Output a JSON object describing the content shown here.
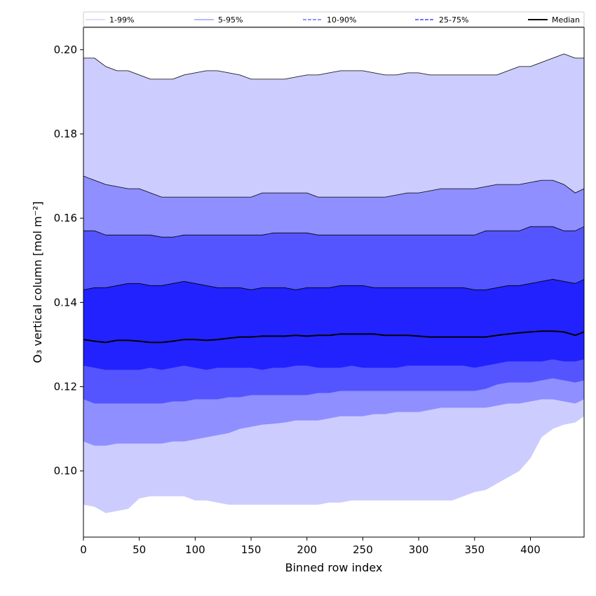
{
  "chart_data": {
    "type": "area",
    "title": "",
    "xlabel": "Binned row index",
    "ylabel": "O₃ vertical column [mol m⁻²]",
    "xlim": [
      0,
      448
    ],
    "ylim": [
      0.0843,
      0.2053
    ],
    "x_ticks": [
      0,
      50,
      100,
      150,
      200,
      250,
      300,
      350,
      400
    ],
    "y_ticks": [
      0.1,
      0.12,
      0.14,
      0.16,
      0.18,
      0.2
    ],
    "y_tick_labels": [
      "0.10",
      "0.12",
      "0.14",
      "0.16",
      "0.18",
      "0.20"
    ],
    "grid": false,
    "legend_position": "top",
    "x": [
      0,
      10,
      20,
      30,
      40,
      50,
      60,
      70,
      80,
      90,
      100,
      110,
      120,
      130,
      140,
      150,
      160,
      170,
      180,
      190,
      200,
      210,
      220,
      230,
      240,
      250,
      260,
      270,
      280,
      290,
      300,
      310,
      320,
      330,
      340,
      350,
      360,
      370,
      380,
      390,
      400,
      410,
      420,
      430,
      440,
      448
    ],
    "bands": [
      {
        "name": "1-99%",
        "color": "#ccccff",
        "upper": [
          0.198,
          0.198,
          0.196,
          0.195,
          0.195,
          0.194,
          0.193,
          0.193,
          0.193,
          0.194,
          0.1945,
          0.195,
          0.195,
          0.1945,
          0.194,
          0.193,
          0.193,
          0.193,
          0.193,
          0.1935,
          0.194,
          0.194,
          0.1945,
          0.195,
          0.195,
          0.195,
          0.1945,
          0.194,
          0.194,
          0.1945,
          0.1945,
          0.194,
          0.194,
          0.194,
          0.194,
          0.194,
          0.194,
          0.194,
          0.195,
          0.196,
          0.196,
          0.197,
          0.198,
          0.199,
          0.198,
          0.198
        ],
        "lower": [
          0.092,
          0.0915,
          0.09,
          0.0905,
          0.091,
          0.0935,
          0.094,
          0.094,
          0.094,
          0.094,
          0.093,
          0.093,
          0.0925,
          0.092,
          0.092,
          0.092,
          0.092,
          0.092,
          0.092,
          0.092,
          0.092,
          0.092,
          0.0925,
          0.0925,
          0.093,
          0.093,
          0.093,
          0.093,
          0.093,
          0.093,
          0.093,
          0.093,
          0.093,
          0.093,
          0.094,
          0.095,
          0.0955,
          0.097,
          0.0985,
          0.1,
          0.103,
          0.108,
          0.11,
          0.111,
          0.1115,
          0.113
        ]
      },
      {
        "name": "5-95%",
        "color": "#8f8fff",
        "upper": [
          0.17,
          0.169,
          0.168,
          0.1675,
          0.167,
          0.167,
          0.166,
          0.165,
          0.165,
          0.165,
          0.165,
          0.165,
          0.165,
          0.165,
          0.165,
          0.165,
          0.166,
          0.166,
          0.166,
          0.166,
          0.166,
          0.165,
          0.165,
          0.165,
          0.165,
          0.165,
          0.165,
          0.165,
          0.1655,
          0.166,
          0.166,
          0.1665,
          0.167,
          0.167,
          0.167,
          0.167,
          0.1675,
          0.168,
          0.168,
          0.168,
          0.1685,
          0.169,
          0.169,
          0.168,
          0.166,
          0.167
        ],
        "lower": [
          0.107,
          0.106,
          0.106,
          0.1065,
          0.1065,
          0.1065,
          0.1065,
          0.1065,
          0.107,
          0.107,
          0.1075,
          0.108,
          0.1085,
          0.109,
          0.11,
          0.1105,
          0.111,
          0.1112,
          0.1115,
          0.112,
          0.112,
          0.112,
          0.1125,
          0.113,
          0.113,
          0.113,
          0.1135,
          0.1135,
          0.114,
          0.114,
          0.114,
          0.1145,
          0.115,
          0.115,
          0.115,
          0.115,
          0.115,
          0.1155,
          0.116,
          0.116,
          0.1165,
          0.117,
          0.117,
          0.1165,
          0.116,
          0.117
        ]
      },
      {
        "name": "10-90%",
        "color": "#5555ff",
        "upper": [
          0.157,
          0.157,
          0.156,
          0.156,
          0.156,
          0.156,
          0.156,
          0.1555,
          0.1555,
          0.156,
          0.156,
          0.156,
          0.156,
          0.156,
          0.156,
          0.156,
          0.156,
          0.1565,
          0.1565,
          0.1565,
          0.1565,
          0.156,
          0.156,
          0.156,
          0.156,
          0.156,
          0.156,
          0.156,
          0.156,
          0.156,
          0.156,
          0.156,
          0.156,
          0.156,
          0.156,
          0.156,
          0.157,
          0.157,
          0.157,
          0.157,
          0.158,
          0.158,
          0.158,
          0.157,
          0.157,
          0.158
        ],
        "lower": [
          0.117,
          0.116,
          0.116,
          0.116,
          0.116,
          0.116,
          0.116,
          0.116,
          0.1165,
          0.1165,
          0.117,
          0.117,
          0.117,
          0.1175,
          0.1175,
          0.118,
          0.118,
          0.118,
          0.118,
          0.118,
          0.118,
          0.1185,
          0.1185,
          0.119,
          0.119,
          0.119,
          0.119,
          0.119,
          0.119,
          0.119,
          0.119,
          0.119,
          0.119,
          0.119,
          0.119,
          0.119,
          0.1195,
          0.1205,
          0.121,
          0.121,
          0.121,
          0.1215,
          0.122,
          0.1215,
          0.121,
          0.1215
        ]
      },
      {
        "name": "25-75%",
        "color": "#2222ff",
        "upper": [
          0.143,
          0.1435,
          0.1435,
          0.144,
          0.1445,
          0.1445,
          0.144,
          0.144,
          0.1445,
          0.145,
          0.1445,
          0.144,
          0.1435,
          0.1435,
          0.1435,
          0.143,
          0.1435,
          0.1435,
          0.1435,
          0.143,
          0.1435,
          0.1435,
          0.1435,
          0.144,
          0.144,
          0.144,
          0.1435,
          0.1435,
          0.1435,
          0.1435,
          0.1435,
          0.1435,
          0.1435,
          0.1435,
          0.1435,
          0.143,
          0.143,
          0.1435,
          0.144,
          0.144,
          0.1445,
          0.145,
          0.1455,
          0.145,
          0.1445,
          0.1455
        ],
        "lower": [
          0.125,
          0.1245,
          0.124,
          0.124,
          0.124,
          0.124,
          0.1245,
          0.124,
          0.1245,
          0.125,
          0.1245,
          0.124,
          0.1245,
          0.1245,
          0.1245,
          0.1245,
          0.124,
          0.1245,
          0.1245,
          0.125,
          0.125,
          0.1245,
          0.1245,
          0.1245,
          0.125,
          0.1245,
          0.1245,
          0.1245,
          0.1245,
          0.125,
          0.125,
          0.125,
          0.125,
          0.125,
          0.125,
          0.1245,
          0.125,
          0.1255,
          0.126,
          0.126,
          0.126,
          0.126,
          0.1265,
          0.126,
          0.126,
          0.1265
        ]
      }
    ],
    "series": [
      {
        "name": "Median",
        "color": "#000000",
        "values": [
          0.1312,
          0.1308,
          0.1305,
          0.131,
          0.131,
          0.1308,
          0.1305,
          0.1305,
          0.1308,
          0.1312,
          0.1312,
          0.131,
          0.1312,
          0.1315,
          0.1318,
          0.1318,
          0.132,
          0.132,
          0.132,
          0.1322,
          0.132,
          0.1322,
          0.1322,
          0.1325,
          0.1325,
          0.1325,
          0.1325,
          0.1322,
          0.1322,
          0.1322,
          0.132,
          0.1318,
          0.1318,
          0.1318,
          0.1318,
          0.1318,
          0.1318,
          0.1322,
          0.1325,
          0.1328,
          0.133,
          0.1332,
          0.1332,
          0.133,
          0.1322,
          0.133
        ]
      }
    ],
    "legend": [
      {
        "label": "1-99%",
        "color": "#ccccff",
        "style": "solid"
      },
      {
        "label": "5-95%",
        "color": "#8f8fff",
        "style": "solid"
      },
      {
        "label": "10-90%",
        "color": "#5555ff",
        "style": "dashed"
      },
      {
        "label": "25-75%",
        "color": "#2222ff",
        "style": "dashed"
      },
      {
        "label": "Median",
        "color": "#000000",
        "style": "solid"
      }
    ]
  }
}
